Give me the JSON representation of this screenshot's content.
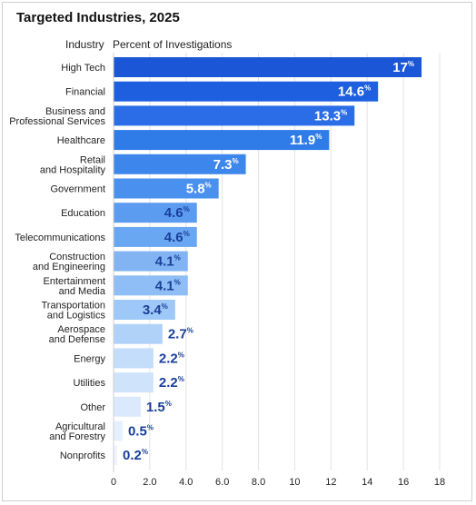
{
  "header": {
    "title": "Targeted Industries, 2025",
    "industry_label": "Industry",
    "percent_label": "Percent of Investigations"
  },
  "colors": {
    "bar_scale": [
      "#1a56d6",
      "#1e5fe0",
      "#2b6de6",
      "#2f7be8",
      "#3d86ec",
      "#4a90ee",
      "#5b9cf0",
      "#6aa7f2",
      "#82b4f4",
      "#8ebef5",
      "#9dc8f7",
      "#b0d2f8",
      "#c4ddfa",
      "#cfe3fb",
      "#dbe9fc",
      "#e5f0fd",
      "#eef5fe"
    ],
    "label_dark": "#1a3f99",
    "label_light": "#ffffff"
  },
  "chart_data": {
    "type": "bar",
    "orientation": "horizontal",
    "title": "Targeted Industries, 2025",
    "ylabel": "Industry",
    "xlabel": "Percent of Investigations",
    "categories": [
      "High Tech",
      "Financial",
      "Business and\nProfessional Services",
      "Healthcare",
      "Retail\nand Hospitality",
      "Government",
      "Education",
      "Telecommunications",
      "Construction\nand Engineering",
      "Entertainment\nand Media",
      "Transportation\nand Logistics",
      "Aerospace\nand Defense",
      "Energy",
      "Utilities",
      "Other",
      "Agricultural\nand Forestry",
      "Nonprofits"
    ],
    "values": [
      17,
      14.6,
      13.3,
      11.9,
      7.3,
      5.8,
      4.6,
      4.6,
      4.1,
      4.1,
      3.4,
      2.7,
      2.2,
      2.2,
      1.5,
      0.5,
      0.2
    ],
    "value_labels": [
      "17",
      "14.6",
      "13.3",
      "11.9",
      "7.3",
      "5.8",
      "4.6",
      "4.6",
      "4.1",
      "4.1",
      "3.4",
      "2.7",
      "2.2",
      "2.2",
      "1.5",
      "0.5",
      "0.2"
    ],
    "unit": "%",
    "xlim": [
      0,
      18
    ],
    "xticks": [
      "0",
      "2.0",
      "4.0",
      "6.0",
      "8.0",
      "10",
      "12",
      "14",
      "16",
      "18"
    ],
    "grid": true
  }
}
